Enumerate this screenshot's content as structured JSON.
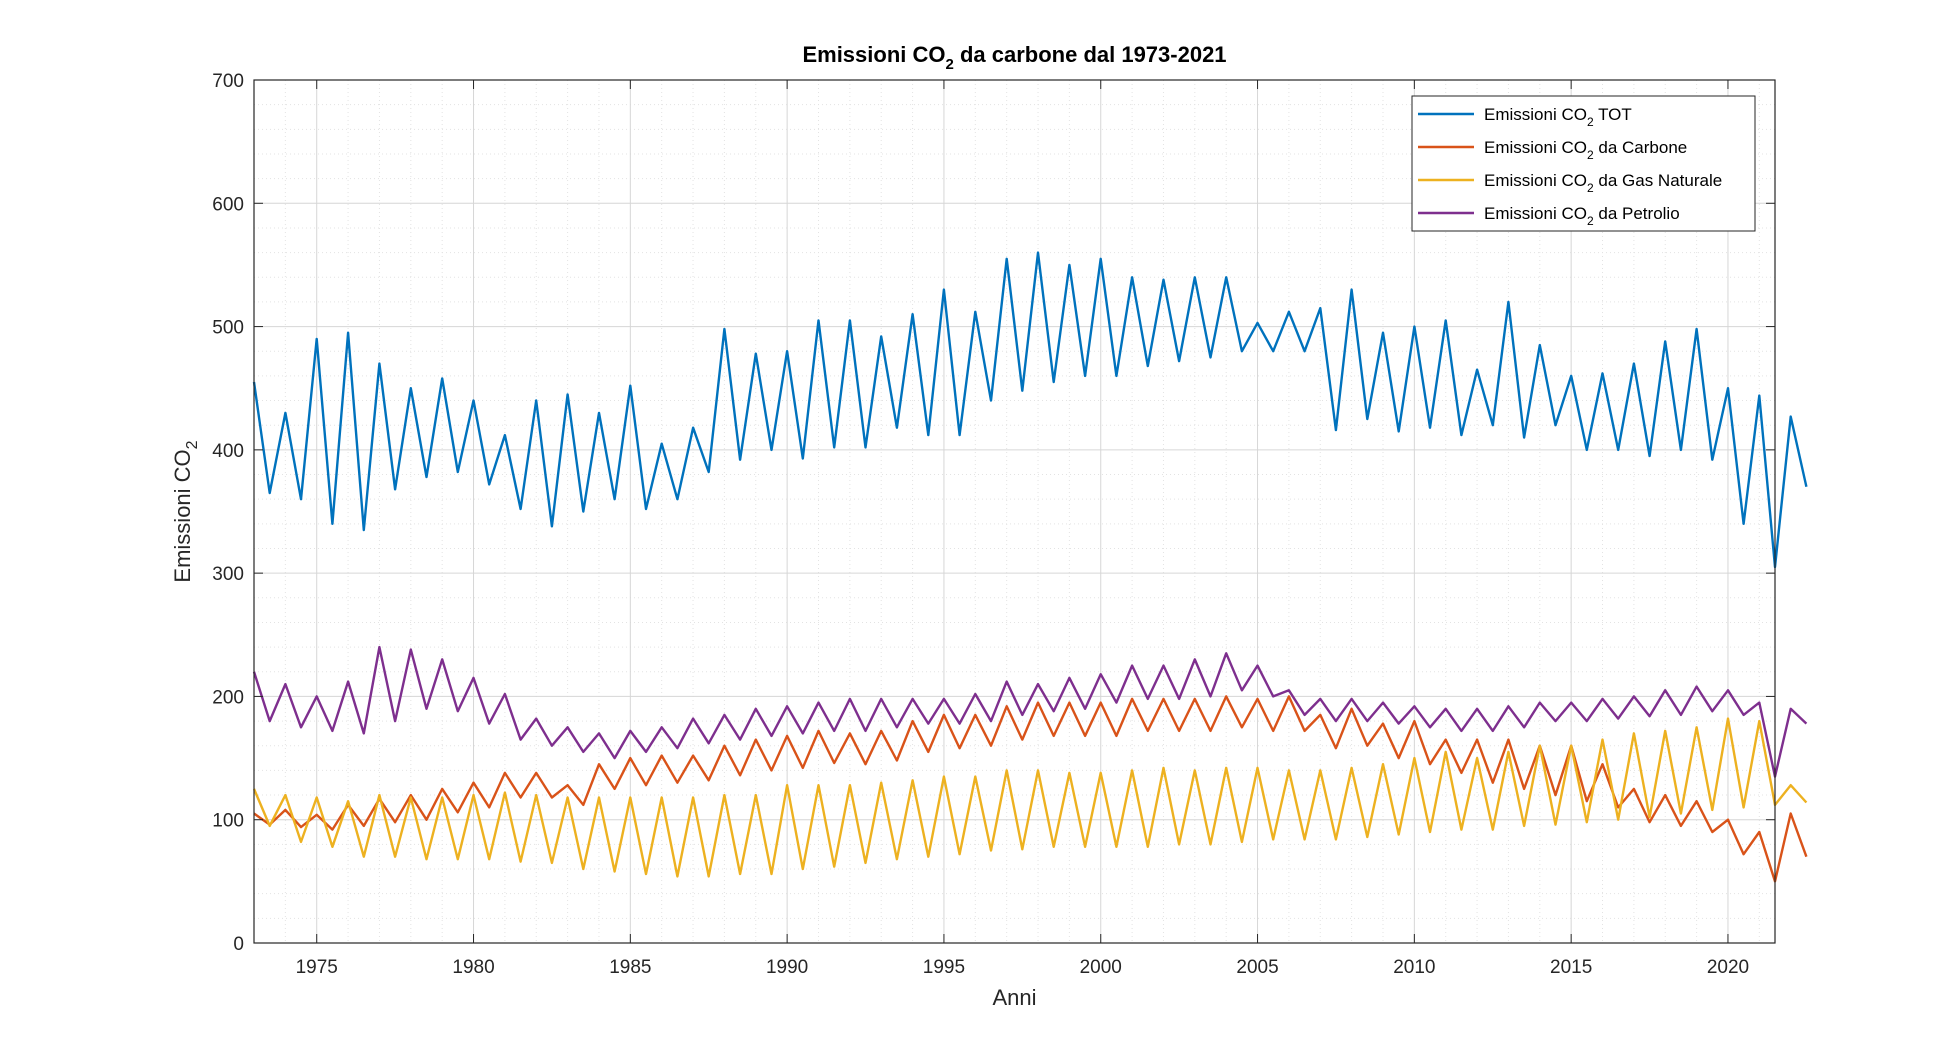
{
  "chart_data": {
    "type": "line",
    "title": {
      "main": "Emissioni CO",
      "sub": "2",
      "rest": " da carbone dal 1973-2021"
    },
    "xlabel": "Anni",
    "ylabel": {
      "main": "Emissioni CO",
      "sub": "2"
    },
    "xlim": [
      1973,
      2021.5
    ],
    "ylim": [
      0,
      700
    ],
    "xticks": [
      1975,
      1980,
      1985,
      1990,
      1995,
      2000,
      2005,
      2010,
      2015,
      2020
    ],
    "yticks": [
      0,
      100,
      200,
      300,
      400,
      500,
      600,
      700
    ],
    "grid": true,
    "minor_grid": true,
    "legend_position": "top-right",
    "x_step": 0.5,
    "series": [
      {
        "name": {
          "main": "Emissioni CO",
          "sub": "2",
          "rest": " TOT"
        },
        "color": "#0072BD",
        "x_start": 1973,
        "high": [
          455,
          430,
          490,
          495,
          470,
          450,
          458,
          440,
          412,
          440,
          445,
          430,
          452,
          405,
          418,
          498,
          478,
          480,
          505,
          505,
          492,
          510,
          530,
          512,
          555,
          560,
          550,
          555,
          540,
          538,
          540,
          540,
          503,
          512,
          515,
          530,
          495,
          500,
          505,
          465,
          520,
          485,
          460,
          462,
          470,
          488,
          498,
          450,
          444,
          427
        ],
        "low": [
          365,
          360,
          340,
          335,
          368,
          378,
          382,
          372,
          352,
          338,
          350,
          360,
          352,
          360,
          382,
          392,
          400,
          393,
          402,
          402,
          418,
          412,
          412,
          440,
          448,
          455,
          460,
          460,
          468,
          472,
          475,
          480,
          480,
          480,
          416,
          425,
          415,
          418,
          412,
          420,
          410,
          420,
          400,
          400,
          395,
          400,
          392,
          340,
          305,
          370
        ]
      },
      {
        "name": {
          "main": "Emissioni CO",
          "sub": "2",
          "rest": " da Carbone"
        },
        "color": "#D95319",
        "x_start": 1973,
        "high": [
          105,
          108,
          104,
          112,
          117,
          120,
          125,
          130,
          138,
          138,
          128,
          145,
          150,
          152,
          152,
          160,
          165,
          168,
          172,
          170,
          172,
          180,
          185,
          185,
          192,
          195,
          195,
          195,
          198,
          198,
          198,
          200,
          198,
          200,
          185,
          190,
          178,
          180,
          165,
          165,
          165,
          160,
          160,
          145,
          125,
          120,
          115,
          100,
          90,
          105
        ],
        "low": [
          96,
          94,
          92,
          95,
          98,
          100,
          106,
          110,
          118,
          118,
          112,
          125,
          128,
          130,
          132,
          136,
          140,
          142,
          146,
          145,
          148,
          155,
          158,
          160,
          165,
          168,
          168,
          168,
          172,
          172,
          172,
          175,
          172,
          172,
          158,
          160,
          150,
          145,
          138,
          130,
          125,
          120,
          115,
          110,
          98,
          95,
          90,
          72,
          50,
          70
        ]
      },
      {
        "name": {
          "main": "Emissioni CO",
          "sub": "2",
          "rest": " da Gas Naturale"
        },
        "color": "#EDB120",
        "x_start": 1973,
        "high": [
          125,
          120,
          118,
          115,
          120,
          118,
          118,
          120,
          122,
          120,
          118,
          118,
          118,
          118,
          118,
          120,
          120,
          128,
          128,
          128,
          130,
          132,
          135,
          135,
          140,
          140,
          138,
          138,
          140,
          142,
          140,
          142,
          142,
          140,
          140,
          142,
          145,
          150,
          155,
          150,
          155,
          160,
          160,
          165,
          170,
          172,
          175,
          182,
          180,
          128
        ],
        "low": [
          95,
          82,
          78,
          70,
          70,
          68,
          68,
          68,
          66,
          65,
          60,
          58,
          56,
          54,
          54,
          56,
          56,
          60,
          62,
          65,
          68,
          70,
          72,
          75,
          76,
          78,
          78,
          78,
          78,
          80,
          80,
          82,
          84,
          84,
          84,
          86,
          88,
          90,
          92,
          92,
          95,
          96,
          98,
          100,
          102,
          105,
          108,
          110,
          112,
          114
        ]
      },
      {
        "name": {
          "main": "Emissioni CO",
          "sub": "2",
          "rest": " da Petrolio"
        },
        "color": "#7E2F8E",
        "x_start": 1973,
        "high": [
          220,
          210,
          200,
          212,
          240,
          238,
          230,
          215,
          202,
          182,
          175,
          170,
          172,
          175,
          182,
          185,
          190,
          192,
          195,
          198,
          198,
          198,
          198,
          202,
          212,
          210,
          215,
          218,
          225,
          225,
          230,
          235,
          225,
          205,
          198,
          198,
          195,
          192,
          190,
          190,
          192,
          195,
          195,
          198,
          200,
          205,
          208,
          205,
          195,
          190
        ],
        "low": [
          180,
          175,
          172,
          170,
          180,
          190,
          188,
          178,
          165,
          160,
          155,
          150,
          155,
          158,
          162,
          165,
          168,
          170,
          172,
          172,
          175,
          178,
          178,
          180,
          185,
          188,
          190,
          195,
          198,
          198,
          200,
          205,
          200,
          185,
          180,
          180,
          178,
          175,
          172,
          172,
          175,
          180,
          180,
          182,
          184,
          185,
          188,
          185,
          135,
          178
        ]
      }
    ]
  }
}
